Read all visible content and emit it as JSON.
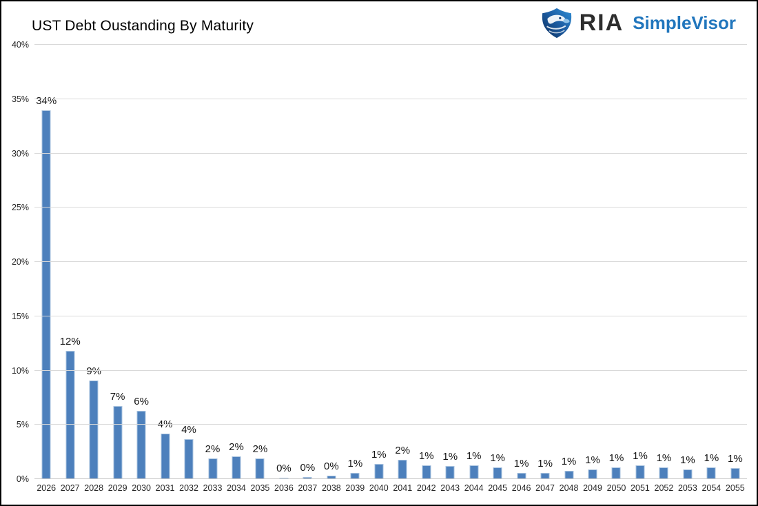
{
  "header": {
    "title": "UST Debt Oustanding By Maturity",
    "logo": {
      "icon": "ria-eagle-shield-icon",
      "brand": "RIA",
      "product": "SimpleVisor",
      "brand_color": "#2d2d2d",
      "product_color": "#2176bd"
    }
  },
  "chart_data": {
    "type": "bar",
    "title": "UST Debt Oustanding By Maturity",
    "xlabel": "",
    "ylabel": "",
    "ylim": [
      0,
      40
    ],
    "ytick_step": 5,
    "ytick_labels": [
      "0%",
      "5%",
      "10%",
      "15%",
      "20%",
      "25%",
      "30%",
      "35%",
      "40%"
    ],
    "grid": true,
    "legend": false,
    "bar_color": "#4d80bc",
    "bar_border_color": "#a9c3df",
    "gridline_color": "#d9d9d9",
    "categories": [
      "2026",
      "2027",
      "2028",
      "2029",
      "2030",
      "2031",
      "2032",
      "2033",
      "2034",
      "2035",
      "2036",
      "2037",
      "2038",
      "2039",
      "2040",
      "2041",
      "2042",
      "2043",
      "2044",
      "2045",
      "2046",
      "2047",
      "2048",
      "2049",
      "2050",
      "2051",
      "2052",
      "2053",
      "2054",
      "2055"
    ],
    "values": [
      34,
      11.8,
      9.1,
      6.7,
      6.3,
      4.2,
      3.7,
      1.9,
      2.1,
      1.9,
      0.15,
      0.2,
      0.3,
      0.55,
      1.4,
      1.75,
      1.25,
      1.2,
      1.25,
      1.1,
      0.55,
      0.55,
      0.75,
      0.9,
      1.05,
      1.3,
      1.05,
      0.9,
      1.05,
      1.0
    ],
    "labels": [
      "34%",
      "12%",
      "9%",
      "7%",
      "6%",
      "4%",
      "4%",
      "2%",
      "2%",
      "2%",
      "0%",
      "0%",
      "0%",
      "1%",
      "1%",
      "2%",
      "1%",
      "1%",
      "1%",
      "1%",
      "1%",
      "1%",
      "1%",
      "1%",
      "1%",
      "1%",
      "1%",
      "1%",
      "1%",
      "1%"
    ]
  }
}
